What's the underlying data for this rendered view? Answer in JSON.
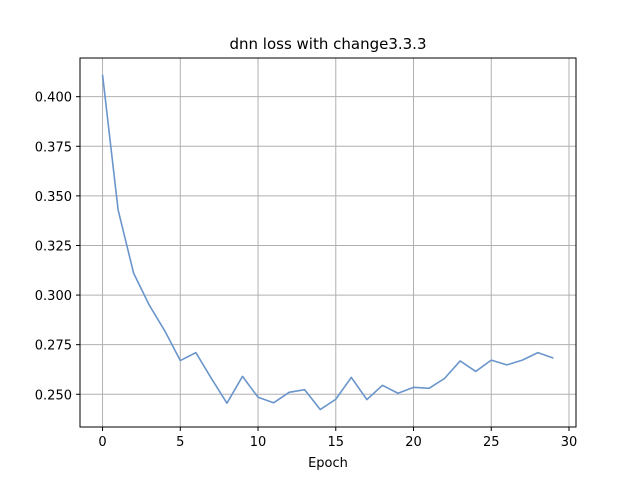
{
  "chart_data": {
    "type": "line",
    "title": "dnn loss with change3.3.3",
    "xlabel": "Epoch",
    "ylabel": "",
    "xlim": [
      -1.45,
      30.45
    ],
    "ylim": [
      0.2335,
      0.4195
    ],
    "grid": true,
    "line_color": "#6a96cc",
    "x_ticks": [
      0,
      5,
      10,
      15,
      20,
      25,
      30
    ],
    "x_tick_labels": [
      "0",
      "5",
      "10",
      "15",
      "20",
      "25",
      "30"
    ],
    "y_ticks": [
      0.25,
      0.275,
      0.3,
      0.325,
      0.35,
      0.375,
      0.4
    ],
    "y_tick_labels": [
      "0.250",
      "0.275",
      "0.300",
      "0.325",
      "0.350",
      "0.375",
      "0.400"
    ],
    "series": [
      {
        "x": [
          0,
          1,
          2,
          3,
          4,
          5,
          6,
          7,
          8,
          9,
          10,
          11,
          12,
          13,
          14,
          15,
          16,
          17,
          18,
          19,
          20,
          21,
          22,
          23,
          24,
          25,
          26,
          27,
          28,
          29
        ],
        "values": [
          0.411,
          0.343,
          0.311,
          0.295,
          0.282,
          0.267,
          0.271,
          0.258,
          0.2455,
          0.259,
          0.2485,
          0.2457,
          0.251,
          0.2523,
          0.2423,
          0.2475,
          0.2585,
          0.2473,
          0.2545,
          0.2505,
          0.2535,
          0.253,
          0.258,
          0.2668,
          0.2615,
          0.2672,
          0.2648,
          0.2672,
          0.271,
          0.2682
        ]
      }
    ]
  }
}
